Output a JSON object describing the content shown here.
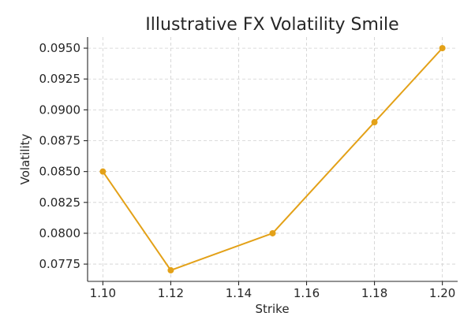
{
  "chart_data": {
    "type": "line",
    "title": "Illustrative FX Volatility Smile",
    "xlabel": "Strike",
    "ylabel": "Volatility",
    "x": [
      1.1,
      1.12,
      1.15,
      1.18,
      1.2
    ],
    "series": [
      {
        "values": [
          0.085,
          0.077,
          0.08,
          0.089,
          0.095
        ],
        "color": "#e3a118"
      }
    ],
    "xticks": [
      "1.10",
      "1.12",
      "1.14",
      "1.16",
      "1.18",
      "1.20"
    ],
    "yticks": [
      "0.0775",
      "0.0800",
      "0.0825",
      "0.0850",
      "0.0875",
      "0.0900",
      "0.0925",
      "0.0950"
    ],
    "xlim": [
      1.0955,
      1.2045
    ],
    "ylim": [
      0.0761,
      0.0959
    ],
    "grid": true,
    "legend": "none"
  }
}
